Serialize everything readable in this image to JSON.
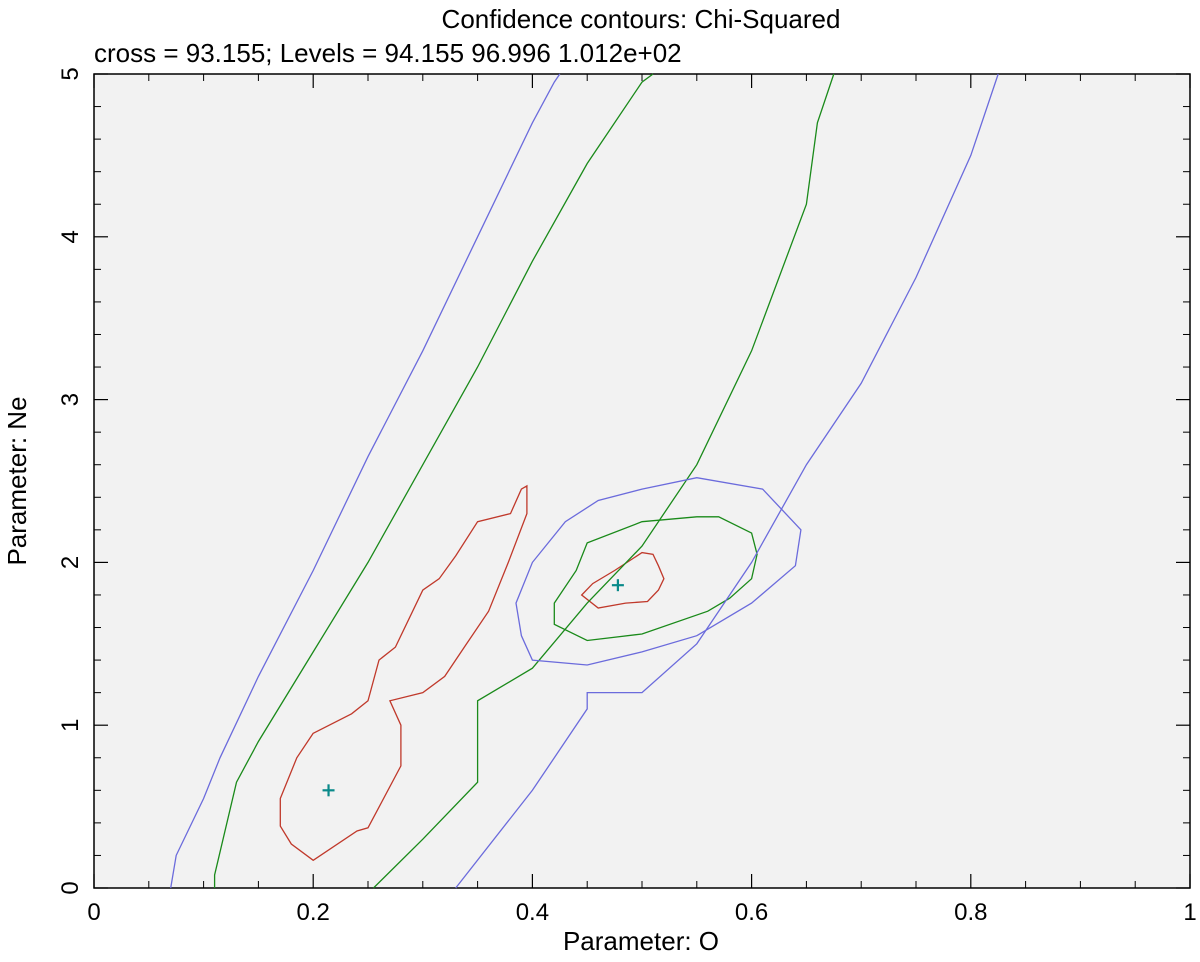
{
  "chart_data": {
    "type": "contour",
    "title": "Confidence contours: Chi-Squared",
    "subtitle": "cross = 93.155; Levels =  94.155 96.996 1.012e+02",
    "xlabel": "Parameter: O",
    "ylabel": "Parameter: Ne",
    "xlim": [
      0,
      1
    ],
    "ylim": [
      0,
      5
    ],
    "x_ticks": [
      0,
      0.2,
      0.4,
      0.6,
      0.8,
      1
    ],
    "x_tick_labels": [
      "0",
      "0.2",
      "0.4",
      "0.6",
      "0.8",
      "1"
    ],
    "y_ticks": [
      0,
      1,
      2,
      3,
      4,
      5
    ],
    "y_tick_labels": [
      "0",
      "1",
      "2",
      "3",
      "4",
      "5"
    ],
    "cross_value": 93.155,
    "levels": [
      94.155,
      96.996,
      101.2
    ],
    "level_colors": [
      "#c0392b",
      "#1a8a1a",
      "#6b6bdc"
    ],
    "plot_background": "#f2f2f2",
    "marker_color": "#0a8a8a",
    "markers": [
      {
        "x": 0.214,
        "y": 0.6
      },
      {
        "x": 0.478,
        "y": 1.86
      }
    ],
    "contours": [
      {
        "level": 94.155,
        "closed": true,
        "points": [
          [
            0.2,
            0.95
          ],
          [
            0.235,
            1.07
          ],
          [
            0.25,
            1.15
          ],
          [
            0.26,
            1.4
          ],
          [
            0.275,
            1.48
          ],
          [
            0.3,
            1.83
          ],
          [
            0.315,
            1.9
          ],
          [
            0.33,
            2.04
          ],
          [
            0.35,
            2.25
          ],
          [
            0.38,
            2.3
          ],
          [
            0.39,
            2.45
          ],
          [
            0.395,
            2.47
          ],
          [
            0.395,
            2.3
          ],
          [
            0.378,
            2.0
          ],
          [
            0.36,
            1.7
          ],
          [
            0.34,
            1.5
          ],
          [
            0.32,
            1.3
          ],
          [
            0.3,
            1.2
          ],
          [
            0.27,
            1.15
          ],
          [
            0.28,
            1.0
          ],
          [
            0.28,
            0.75
          ],
          [
            0.25,
            0.37
          ],
          [
            0.24,
            0.35
          ],
          [
            0.2,
            0.17
          ],
          [
            0.18,
            0.27
          ],
          [
            0.17,
            0.38
          ],
          [
            0.17,
            0.55
          ],
          [
            0.185,
            0.8
          ],
          [
            0.2,
            0.95
          ]
        ]
      },
      {
        "level": 94.155,
        "closed": true,
        "points": [
          [
            0.445,
            1.8
          ],
          [
            0.455,
            1.87
          ],
          [
            0.475,
            1.95
          ],
          [
            0.5,
            2.06
          ],
          [
            0.51,
            2.05
          ],
          [
            0.515,
            1.98
          ],
          [
            0.52,
            1.9
          ],
          [
            0.515,
            1.83
          ],
          [
            0.505,
            1.76
          ],
          [
            0.485,
            1.75
          ],
          [
            0.46,
            1.72
          ],
          [
            0.445,
            1.8
          ]
        ]
      },
      {
        "level": 96.996,
        "closed": false,
        "points": [
          [
            0.11,
            0.0
          ],
          [
            0.11,
            0.08
          ],
          [
            0.13,
            0.65
          ],
          [
            0.15,
            0.9
          ],
          [
            0.2,
            1.45
          ],
          [
            0.25,
            2.0
          ],
          [
            0.3,
            2.6
          ],
          [
            0.35,
            3.2
          ],
          [
            0.4,
            3.85
          ],
          [
            0.45,
            4.45
          ],
          [
            0.5,
            4.95
          ],
          [
            0.51,
            5.0
          ]
        ]
      },
      {
        "level": 96.996,
        "closed": false,
        "points": [
          [
            0.255,
            0.0
          ],
          [
            0.3,
            0.3
          ],
          [
            0.35,
            0.65
          ],
          [
            0.35,
            1.15
          ],
          [
            0.4,
            1.35
          ],
          [
            0.45,
            1.75
          ],
          [
            0.5,
            2.1
          ],
          [
            0.55,
            2.6
          ],
          [
            0.6,
            3.3
          ],
          [
            0.65,
            4.2
          ],
          [
            0.66,
            4.7
          ],
          [
            0.675,
            5.0
          ]
        ]
      },
      {
        "level": 96.996,
        "closed": true,
        "points": [
          [
            0.42,
            1.75
          ],
          [
            0.44,
            1.95
          ],
          [
            0.45,
            2.12
          ],
          [
            0.5,
            2.25
          ],
          [
            0.55,
            2.28
          ],
          [
            0.57,
            2.28
          ],
          [
            0.6,
            2.18
          ],
          [
            0.605,
            2.05
          ],
          [
            0.6,
            1.9
          ],
          [
            0.58,
            1.78
          ],
          [
            0.56,
            1.7
          ],
          [
            0.5,
            1.56
          ],
          [
            0.45,
            1.52
          ],
          [
            0.42,
            1.62
          ],
          [
            0.42,
            1.75
          ]
        ]
      },
      {
        "level": 101.2,
        "closed": false,
        "points": [
          [
            0.07,
            0.0
          ],
          [
            0.075,
            0.2
          ],
          [
            0.1,
            0.55
          ],
          [
            0.115,
            0.8
          ],
          [
            0.15,
            1.3
          ],
          [
            0.2,
            1.95
          ],
          [
            0.25,
            2.65
          ],
          [
            0.3,
            3.3
          ],
          [
            0.35,
            4.0
          ],
          [
            0.4,
            4.7
          ],
          [
            0.42,
            4.95
          ],
          [
            0.425,
            5.0
          ]
        ]
      },
      {
        "level": 101.2,
        "closed": false,
        "points": [
          [
            0.33,
            0.0
          ],
          [
            0.4,
            0.6
          ],
          [
            0.45,
            1.1
          ],
          [
            0.45,
            1.2
          ],
          [
            0.5,
            1.2
          ],
          [
            0.55,
            1.5
          ],
          [
            0.6,
            2.0
          ],
          [
            0.65,
            2.6
          ],
          [
            0.7,
            3.1
          ],
          [
            0.75,
            3.75
          ],
          [
            0.8,
            4.5
          ],
          [
            0.825,
            5.0
          ]
        ]
      },
      {
        "level": 101.2,
        "closed": true,
        "points": [
          [
            0.39,
            1.55
          ],
          [
            0.4,
            1.4
          ],
          [
            0.45,
            1.37
          ],
          [
            0.5,
            1.45
          ],
          [
            0.55,
            1.55
          ],
          [
            0.6,
            1.75
          ],
          [
            0.64,
            1.98
          ],
          [
            0.645,
            2.2
          ],
          [
            0.61,
            2.45
          ],
          [
            0.55,
            2.52
          ],
          [
            0.5,
            2.45
          ],
          [
            0.46,
            2.38
          ],
          [
            0.43,
            2.25
          ],
          [
            0.4,
            2.0
          ],
          [
            0.385,
            1.75
          ],
          [
            0.39,
            1.55
          ]
        ]
      }
    ]
  }
}
